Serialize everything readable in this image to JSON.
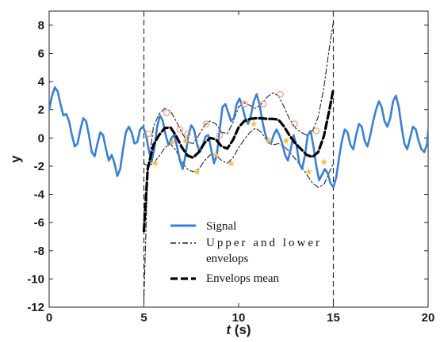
{
  "chart_data": {
    "type": "line",
    "title": "",
    "xlabel": "t (s)",
    "xlabel_var": "t",
    "xlabel_unit": "(s)",
    "ylabel": "y",
    "xlim": [
      0,
      20
    ],
    "ylim": [
      -12,
      9
    ],
    "xticks": [
      0,
      5,
      10,
      15,
      20
    ],
    "yticks": [
      8,
      6,
      4,
      2,
      0,
      -2,
      -4,
      -6,
      -8,
      -10,
      -12
    ],
    "grid": false,
    "legend_position": "bottom-center",
    "vertical_lines": [
      5,
      15
    ],
    "colors": {
      "signal": "#3a7fd5",
      "upper_lower": "#222222",
      "mean": "#000000",
      "maxima_marker": "#e8a08c",
      "minima_marker": "#f2c14e"
    },
    "legend": [
      {
        "key": "signal",
        "label_lines": [
          "Signal"
        ]
      },
      {
        "key": "upper_lower",
        "label_lines": [
          "Upper and lower",
          "envelops"
        ]
      },
      {
        "key": "mean",
        "label_lines": [
          "Envelops mean"
        ]
      }
    ],
    "series": [
      {
        "name": "Signal",
        "key": "signal",
        "x": [
          0,
          0.15,
          0.3,
          0.45,
          0.6,
          0.75,
          0.9,
          1.05,
          1.2,
          1.35,
          1.5,
          1.65,
          1.8,
          1.95,
          2.1,
          2.25,
          2.4,
          2.55,
          2.7,
          2.85,
          3.0,
          3.15,
          3.3,
          3.45,
          3.6,
          3.75,
          3.9,
          4.05,
          4.2,
          4.35,
          4.5,
          4.65,
          4.8,
          4.95,
          5.1,
          5.25,
          5.4,
          5.55,
          5.7,
          5.85,
          6.0,
          6.15,
          6.3,
          6.45,
          6.6,
          6.75,
          6.9,
          7.05,
          7.2,
          7.35,
          7.5,
          7.65,
          7.8,
          7.95,
          8.1,
          8.25,
          8.4,
          8.55,
          8.7,
          8.85,
          9.0,
          9.15,
          9.3,
          9.45,
          9.6,
          9.75,
          9.9,
          10.05,
          10.2,
          10.35,
          10.5,
          10.65,
          10.8,
          10.95,
          11.1,
          11.25,
          11.4,
          11.55,
          11.7,
          11.85,
          12.0,
          12.15,
          12.3,
          12.45,
          12.6,
          12.75,
          12.9,
          13.05,
          13.2,
          13.35,
          13.5,
          13.65,
          13.8,
          13.95,
          14.1,
          14.25,
          14.4,
          14.55,
          14.7,
          14.85,
          15.0,
          15.15,
          15.3,
          15.45,
          15.6,
          15.75,
          15.9,
          16.05,
          16.2,
          16.35,
          16.5,
          16.65,
          16.8,
          16.95,
          17.1,
          17.25,
          17.4,
          17.55,
          17.7,
          17.85,
          18.0,
          18.15,
          18.3,
          18.45,
          18.6,
          18.75,
          18.9,
          19.05,
          19.2,
          19.35,
          19.5,
          19.65,
          19.8,
          19.95,
          20.0
        ],
        "y": [
          2.0,
          3.0,
          3.6,
          3.3,
          2.4,
          1.6,
          1.7,
          1.2,
          0.2,
          -0.6,
          -0.4,
          0.6,
          1.4,
          1.2,
          0.2,
          -1.0,
          -1.3,
          -0.4,
          0.4,
          0.2,
          -0.8,
          -1.6,
          -1.2,
          -1.8,
          -2.7,
          -2.2,
          -0.8,
          0.4,
          0.8,
          0.4,
          -0.4,
          -0.3,
          0.6,
          0.8,
          0.3,
          -0.8,
          -1.7,
          -0.8,
          0.8,
          1.6,
          1.2,
          0.2,
          -0.5,
          0.0,
          0.2,
          -0.6,
          -1.6,
          -2.2,
          -1.2,
          0.2,
          0.9,
          0.6,
          -0.4,
          -1.0,
          -0.6,
          0.1,
          0.2,
          -0.8,
          -1.8,
          -1.2,
          0.6,
          2.2,
          2.4,
          1.8,
          1.2,
          1.4,
          2.4,
          2.8,
          2.2,
          1.4,
          1.0,
          1.6,
          2.6,
          3.1,
          2.4,
          1.2,
          0.3,
          -0.3,
          -0.4,
          0.2,
          0.6,
          0.2,
          -0.4,
          -1.2,
          -1.6,
          -0.8,
          0.2,
          -0.5,
          -1.8,
          -2.2,
          -1.2,
          0.2,
          0.5,
          -0.6,
          -2.0,
          -3.0,
          -2.6,
          -2.2,
          -2.5,
          -3.2,
          -3.5,
          -2.8,
          -1.4,
          -0.2,
          0.6,
          0.4,
          -0.5,
          -0.8,
          0.2,
          1.0,
          0.8,
          -0.2,
          -0.6,
          0.2,
          1.2,
          2.0,
          2.6,
          2.2,
          1.2,
          0.8,
          1.4,
          2.6,
          3.0,
          2.2,
          0.8,
          -0.4,
          -0.8,
          0.0,
          0.8,
          0.6,
          -0.2,
          -0.8,
          -1.0,
          -0.4,
          0.5
        ]
      },
      {
        "name": "Upper envelope",
        "key": "upper_lower",
        "dash": "dashdot",
        "x": [
          5.0,
          5.2,
          5.5,
          5.8,
          6.1,
          6.4,
          6.7,
          7.0,
          7.3,
          7.6,
          7.9,
          8.2,
          8.5,
          8.8,
          9.1,
          9.4,
          9.7,
          10.0,
          10.3,
          10.6,
          10.9,
          11.2,
          11.5,
          11.8,
          12.1,
          12.4,
          12.7,
          13.0,
          13.3,
          13.6,
          13.9,
          14.2,
          14.5,
          14.8,
          15.0
        ],
        "y": [
          -11.4,
          -2.5,
          0.8,
          1.7,
          2.1,
          1.9,
          1.2,
          0.4,
          -0.3,
          -0.4,
          0.2,
          0.9,
          1.2,
          1.0,
          0.4,
          0.3,
          1.1,
          2.2,
          2.5,
          2.3,
          2.1,
          2.4,
          2.9,
          3.2,
          3.0,
          2.2,
          1.3,
          0.7,
          0.4,
          0.2,
          0.5,
          1.5,
          3.6,
          6.5,
          8.2
        ]
      },
      {
        "name": "Lower envelope",
        "key": "upper_lower",
        "dash": "dashdot",
        "x": [
          5.0,
          5.2,
          5.5,
          5.8,
          6.1,
          6.4,
          6.7,
          7.0,
          7.3,
          7.6,
          7.9,
          8.2,
          8.5,
          8.8,
          9.1,
          9.4,
          9.7,
          10.0,
          10.3,
          10.6,
          10.9,
          11.2,
          11.5,
          11.8,
          12.1,
          12.4,
          12.7,
          13.0,
          13.3,
          13.6,
          13.9,
          14.2,
          14.5,
          14.8,
          15.0
        ],
        "y": [
          -1.8,
          -2.0,
          -1.8,
          -1.3,
          -0.7,
          -0.4,
          -0.9,
          -1.7,
          -2.2,
          -2.4,
          -2.2,
          -1.6,
          -1.2,
          -1.2,
          -1.6,
          -1.8,
          -1.4,
          -0.7,
          -0.1,
          0.4,
          0.7,
          0.4,
          -0.2,
          -0.5,
          -0.4,
          -0.6,
          -1.0,
          -1.5,
          -2.0,
          -2.6,
          -3.2,
          -3.5,
          -3.3,
          -2.4,
          -1.8
        ]
      },
      {
        "name": "Envelops mean",
        "key": "mean",
        "dash": "dashed",
        "x": [
          5.0,
          5.2,
          5.5,
          5.8,
          6.1,
          6.4,
          6.7,
          7.0,
          7.3,
          7.6,
          7.9,
          8.2,
          8.5,
          8.8,
          9.1,
          9.4,
          9.7,
          10.0,
          10.3,
          10.6,
          10.9,
          11.2,
          11.5,
          11.8,
          12.1,
          12.4,
          12.7,
          13.0,
          13.3,
          13.6,
          13.9,
          14.2,
          14.5,
          14.8,
          15.0
        ],
        "y": [
          -6.6,
          -2.2,
          -0.5,
          0.2,
          0.7,
          0.75,
          0.15,
          -0.65,
          -1.25,
          -1.4,
          -1.0,
          -0.35,
          0.0,
          -0.1,
          -0.6,
          -0.75,
          -0.15,
          0.75,
          1.2,
          1.35,
          1.4,
          1.4,
          1.35,
          1.35,
          1.3,
          0.8,
          0.15,
          -0.4,
          -0.8,
          -1.2,
          -1.35,
          -1.0,
          0.15,
          2.05,
          3.5
        ]
      }
    ],
    "maxima": {
      "name": "Maxima",
      "x": [
        5.25,
        6.2,
        6.9,
        7.3,
        8.3,
        9.0,
        10.3,
        11.3,
        12.2,
        12.95,
        14.1
      ],
      "y": [
        0.3,
        1.8,
        0.6,
        0.3,
        1.0,
        0.2,
        2.4,
        2.4,
        3.1,
        1.0,
        0.5
      ]
    },
    "minima": {
      "name": "Minima",
      "x": [
        5.6,
        6.5,
        7.2,
        7.8,
        8.8,
        9.6,
        10.8,
        11.6,
        12.5,
        13.7,
        14.5
      ],
      "y": [
        -1.8,
        -0.3,
        -0.2,
        -2.4,
        -1.2,
        -1.8,
        1.0,
        -0.2,
        -0.2,
        -2.4,
        -1.7
      ]
    }
  }
}
